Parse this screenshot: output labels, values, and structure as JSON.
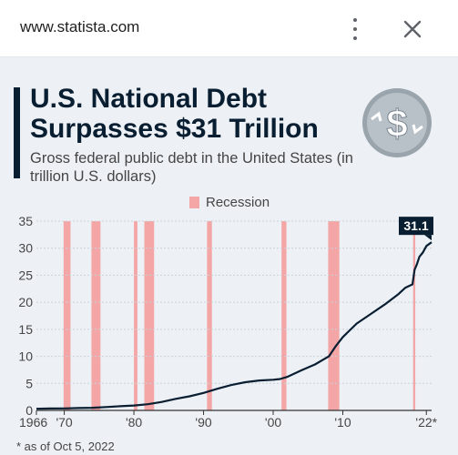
{
  "browser": {
    "url": "www.statista.com"
  },
  "icons": {
    "menu": "kebab-menu-icon",
    "close": "close-icon",
    "logo": "dollar-spiral-icon"
  },
  "colors": {
    "line": "#0a1e32",
    "recession": "#f4a6a6",
    "background": "#edf1f5",
    "title": "#0a1e32"
  },
  "chart_data": {
    "type": "line",
    "title": "U.S. National Debt Surpasses $31 Trillion",
    "subtitle": "Gross federal public debt in the United States (in trillion U.S. dollars)",
    "legend": [
      "Recession"
    ],
    "legend_position": "top-center",
    "ylim": [
      0,
      35
    ],
    "yticks": [
      0,
      5,
      10,
      15,
      20,
      25,
      30,
      35
    ],
    "xlim": [
      1966,
      2022.75
    ],
    "xticks": [
      {
        "value": 1966,
        "label": "1966"
      },
      {
        "value": 1970,
        "label": "'70"
      },
      {
        "value": 1980,
        "label": "'80"
      },
      {
        "value": 1990,
        "label": "'90"
      },
      {
        "value": 2000,
        "label": "'00"
      },
      {
        "value": 2010,
        "label": "'10"
      },
      {
        "value": 2022,
        "label": "'22*"
      }
    ],
    "grid": true,
    "recessions": [
      [
        1969.9,
        1970.9
      ],
      [
        1973.9,
        1975.2
      ],
      [
        1980.0,
        1980.5
      ],
      [
        1981.5,
        1982.9
      ],
      [
        1990.5,
        1991.2
      ],
      [
        2001.2,
        2001.9
      ],
      [
        2007.9,
        2009.5
      ],
      [
        2020.1,
        2020.4
      ]
    ],
    "series": [
      {
        "x": [
          1966,
          1968,
          1970,
          1972,
          1974,
          1976,
          1978,
          1980,
          1982,
          1984,
          1986,
          1988,
          1990,
          1992,
          1994,
          1996,
          1998,
          2000,
          2001,
          2002,
          2004,
          2006,
          2008,
          2009,
          2010,
          2012,
          2014,
          2016,
          2018,
          2019,
          2020,
          2020.3,
          2020.6,
          2021,
          2021.5,
          2022,
          2022.75
        ],
        "y": [
          0.3,
          0.35,
          0.37,
          0.43,
          0.48,
          0.62,
          0.77,
          0.91,
          1.14,
          1.57,
          2.13,
          2.6,
          3.23,
          4.0,
          4.69,
          5.22,
          5.53,
          5.67,
          5.8,
          6.2,
          7.38,
          8.5,
          10.0,
          11.9,
          13.56,
          16.07,
          17.82,
          19.57,
          21.52,
          22.7,
          23.3,
          26.0,
          26.9,
          28.4,
          29.2,
          30.4,
          31.1
        ]
      }
    ],
    "annotations": [
      {
        "x": 2022.75,
        "y": 31.1,
        "label": "31.1"
      }
    ],
    "footnote": "* as of Oct 5, 2022"
  }
}
